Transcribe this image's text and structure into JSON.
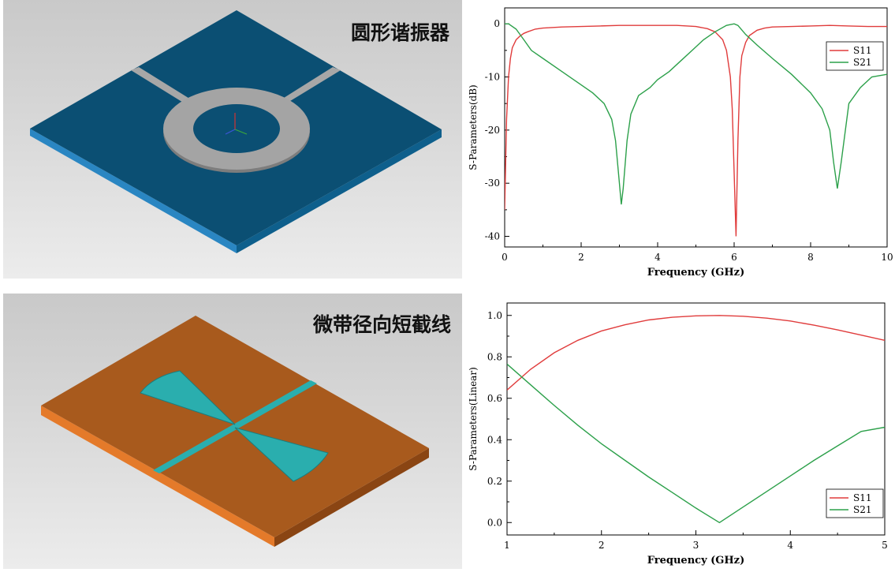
{
  "panels": {
    "top_model": {
      "title": "圆形谐振器"
    },
    "bottom_model": {
      "title": "微带径向短截线"
    }
  },
  "colors": {
    "s11": "#e03c3c",
    "s21": "#2ca04a",
    "substrate_top": "#0b4f73",
    "substrate_bottom": "#a85a1d",
    "metal": "#a7a7a7",
    "stub": "#2aaeae"
  },
  "chart_data": [
    {
      "type": "line",
      "xlabel": "Frequency (GHz)",
      "ylabel": "S-Parameters(dB)",
      "xlim": [
        0,
        10
      ],
      "ylim": [
        -42,
        3
      ],
      "xticks": [
        0,
        2,
        4,
        6,
        8,
        10
      ],
      "yticks": [
        0,
        -10,
        -20,
        -30,
        -40
      ],
      "grid": false,
      "legend": "top-right",
      "series": [
        {
          "name": "S11",
          "x": [
            0,
            0.05,
            0.1,
            0.15,
            0.2,
            0.3,
            0.4,
            0.5,
            0.6,
            0.8,
            1.0,
            1.5,
            2.0,
            2.5,
            3.0,
            3.5,
            4.0,
            4.5,
            5.0,
            5.3,
            5.5,
            5.7,
            5.8,
            5.9,
            5.95,
            6.0,
            6.05,
            6.1,
            6.15,
            6.2,
            6.3,
            6.4,
            6.6,
            6.8,
            7.0,
            7.5,
            8.0,
            8.5,
            9.0,
            9.5,
            10.0
          ],
          "y": [
            -35,
            -18,
            -10,
            -6.5,
            -4.5,
            -3,
            -2.3,
            -1.8,
            -1.5,
            -1,
            -0.8,
            -0.6,
            -0.5,
            -0.4,
            -0.3,
            -0.3,
            -0.3,
            -0.3,
            -0.5,
            -0.9,
            -1.5,
            -3,
            -5,
            -10,
            -16,
            -28,
            -40,
            -22,
            -10,
            -6,
            -3.5,
            -2.2,
            -1.2,
            -0.8,
            -0.6,
            -0.5,
            -0.4,
            -0.3,
            -0.4,
            -0.5,
            -0.5
          ]
        },
        {
          "name": "S21",
          "x": [
            0,
            0.1,
            0.3,
            0.5,
            0.7,
            1.0,
            1.5,
            2.0,
            2.3,
            2.6,
            2.8,
            2.9,
            3.0,
            3.05,
            3.1,
            3.2,
            3.3,
            3.5,
            3.8,
            4.0,
            4.3,
            4.6,
            4.9,
            5.2,
            5.5,
            5.8,
            6.0,
            6.1,
            6.3,
            6.6,
            7.0,
            7.5,
            8.0,
            8.3,
            8.5,
            8.6,
            8.7,
            8.8,
            9.0,
            9.3,
            9.6,
            10.0
          ],
          "y": [
            0,
            0,
            -1,
            -3,
            -5,
            -6.5,
            -9,
            -11.5,
            -13,
            -15,
            -18,
            -22,
            -30,
            -34,
            -31,
            -22,
            -17,
            -13.5,
            -12,
            -10.5,
            -9,
            -7,
            -5,
            -3,
            -1.5,
            -0.3,
            0,
            -0.3,
            -2,
            -4,
            -6.5,
            -9.5,
            -13,
            -16,
            -20,
            -26,
            -31,
            -26,
            -15,
            -12,
            -10,
            -9.5
          ]
        }
      ]
    },
    {
      "type": "line",
      "xlabel": "Frequency (GHz)",
      "ylabel": "S-Parameters(Linear)",
      "xlim": [
        1,
        5
      ],
      "ylim": [
        -0.06,
        1.06
      ],
      "xticks": [
        1,
        2,
        3,
        4,
        5
      ],
      "yticks": [
        0.0,
        0.2,
        0.4,
        0.6,
        0.8,
        1.0
      ],
      "ytick_labels": [
        "0.0",
        "0.2",
        "0.4",
        "0.6",
        "0.8",
        "1.0"
      ],
      "grid": false,
      "legend": "bottom-right",
      "series": [
        {
          "name": "S11",
          "x": [
            1.0,
            1.25,
            1.5,
            1.75,
            2.0,
            2.25,
            2.5,
            2.75,
            3.0,
            3.25,
            3.5,
            3.75,
            4.0,
            4.25,
            4.5,
            4.75,
            5.0
          ],
          "y": [
            0.64,
            0.74,
            0.82,
            0.88,
            0.925,
            0.955,
            0.978,
            0.991,
            0.998,
            1.0,
            0.996,
            0.987,
            0.973,
            0.953,
            0.93,
            0.905,
            0.88
          ]
        },
        {
          "name": "S21",
          "x": [
            1.0,
            1.25,
            1.5,
            1.75,
            2.0,
            2.25,
            2.5,
            2.75,
            3.0,
            3.25,
            3.5,
            3.75,
            4.0,
            4.25,
            4.5,
            4.75,
            5.0
          ],
          "y": [
            0.765,
            0.665,
            0.565,
            0.47,
            0.38,
            0.3,
            0.22,
            0.145,
            0.07,
            0.0,
            0.075,
            0.15,
            0.225,
            0.3,
            0.37,
            0.44,
            0.46
          ]
        }
      ]
    }
  ]
}
